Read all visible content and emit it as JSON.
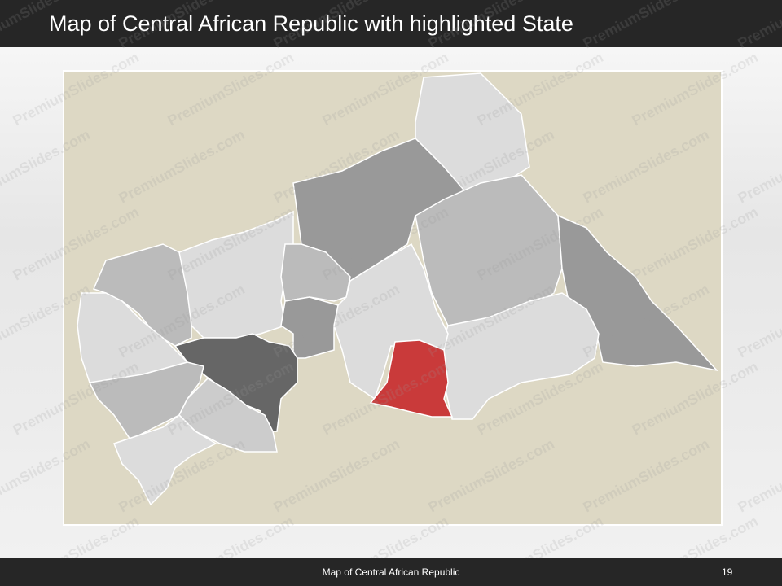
{
  "header": {
    "title": "Map of Central African Republic with highlighted State"
  },
  "footer": {
    "text": "Map of Central African Republic",
    "page_number": "19"
  },
  "watermark": "PremiumSlides.com"
}
